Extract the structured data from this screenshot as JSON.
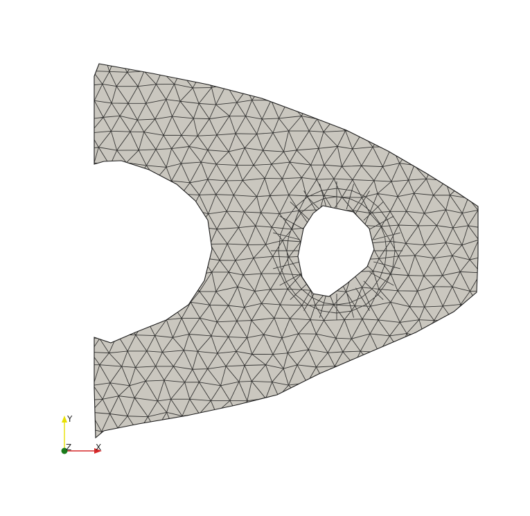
{
  "viewer": {
    "background": "#ffffff",
    "mesh": {
      "element_type": "triangle",
      "surface_color": "#cac7bf",
      "edge_color": "#1a1a1a",
      "hole_count": 1
    },
    "orientation_axes": {
      "x_label": "X",
      "y_label": "Y",
      "z_label": "Z",
      "x_color": "#d62728",
      "y_color": "#e8e000",
      "z_color": "#1a7a1a"
    }
  }
}
